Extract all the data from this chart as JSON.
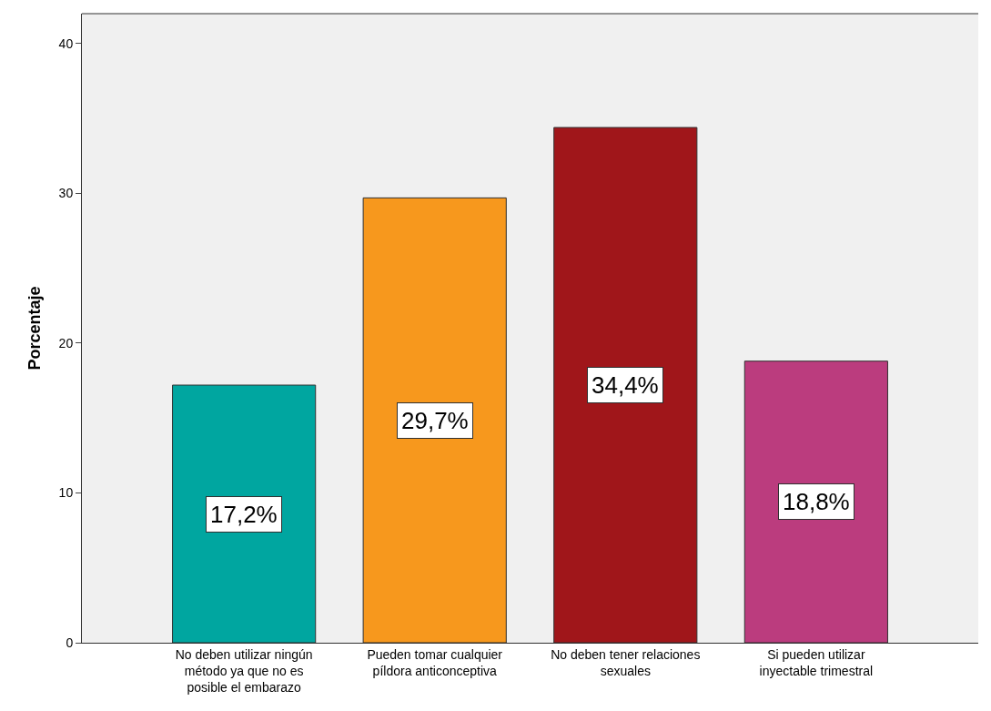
{
  "chart_data": {
    "type": "bar",
    "ylabel": "Porcentaje",
    "categories": [
      "No deben utilizar ningún\nmétodo ya que no es\nposible el embarazo",
      "Pueden tomar cualquier\npíldora anticonceptiva",
      "No deben tener relaciones\nsexuales",
      "Si pueden utilizar\ninyectable trimestral"
    ],
    "values": [
      17.2,
      29.7,
      34.4,
      18.8
    ],
    "colors": [
      "#00a6a0",
      "#f7981d",
      "#a0161a",
      "#bb3c7e"
    ],
    "value_labels": [
      "17,2%",
      "29,7%",
      "34,4%",
      "18,8%"
    ],
    "ylim": [
      0,
      42
    ],
    "yticks": [
      0,
      10,
      20,
      30,
      40
    ],
    "grid": false,
    "legend": false
  }
}
